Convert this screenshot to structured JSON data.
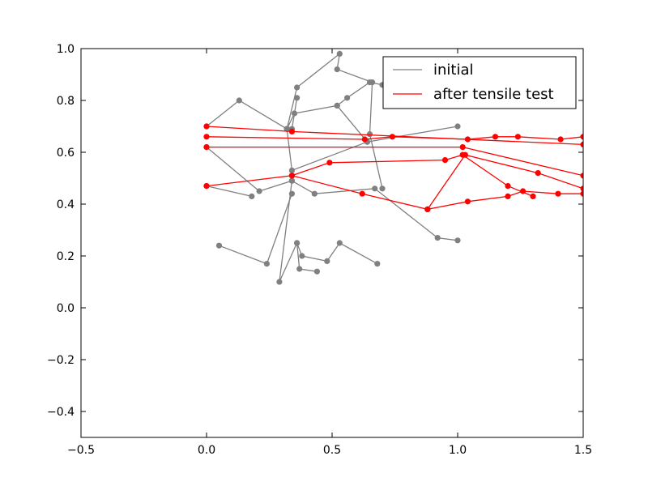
{
  "chart_data": {
    "type": "line",
    "xlim": [
      -0.5,
      1.5
    ],
    "ylim": [
      -0.5,
      1.0
    ],
    "xticks": [
      "−0.5",
      "0.0",
      "0.5",
      "1.0",
      "1.5"
    ],
    "xtick_values": [
      -0.5,
      0.0,
      0.5,
      1.0,
      1.5
    ],
    "yticks": [
      "−0.4",
      "−0.2",
      "0.0",
      "0.2",
      "0.4",
      "0.6",
      "0.8",
      "1.0"
    ],
    "ytick_values": [
      -0.4,
      -0.2,
      0.0,
      0.2,
      0.4,
      0.6,
      0.8,
      1.0
    ],
    "grid": false,
    "legend_position": "top-right",
    "series": [
      {
        "name": "initial",
        "color": "#808080",
        "segments": [
          [
            [
              0.0,
              0.7
            ],
            [
              0.13,
              0.8
            ],
            [
              0.32,
              0.69
            ],
            [
              0.34,
              0.53
            ],
            [
              0.64,
              0.64
            ],
            [
              1.0,
              0.7
            ]
          ],
          [
            [
              0.0,
              0.62
            ],
            [
              0.21,
              0.45
            ],
            [
              0.34,
              0.49
            ],
            [
              0.43,
              0.44
            ],
            [
              0.67,
              0.46
            ],
            [
              0.92,
              0.27
            ],
            [
              1.0,
              0.26
            ]
          ],
          [
            [
              0.05,
              0.24
            ],
            [
              0.24,
              0.17
            ],
            [
              0.34,
              0.44
            ]
          ],
          [
            [
              0.34,
              0.49
            ],
            [
              0.29,
              0.1
            ],
            [
              0.36,
              0.25
            ],
            [
              0.38,
              0.2
            ],
            [
              0.48,
              0.18
            ],
            [
              0.53,
              0.25
            ],
            [
              0.68,
              0.17
            ]
          ],
          [
            [
              0.36,
              0.25
            ],
            [
              0.37,
              0.15
            ],
            [
              0.44,
              0.14
            ]
          ],
          [
            [
              0.32,
              0.69
            ],
            [
              0.35,
              0.75
            ],
            [
              0.52,
              0.78
            ],
            [
              0.56,
              0.81
            ],
            [
              0.65,
              0.87
            ],
            [
              0.7,
              0.86
            ]
          ],
          [
            [
              0.32,
              0.69
            ],
            [
              0.36,
              0.85
            ],
            [
              0.53,
              0.98
            ],
            [
              0.52,
              0.92
            ],
            [
              0.66,
              0.87
            ],
            [
              0.65,
              0.67
            ],
            [
              0.7,
              0.46
            ]
          ],
          [
            [
              0.52,
              0.78
            ],
            [
              0.64,
              0.64
            ]
          ],
          [
            [
              0.18,
              0.43
            ],
            [
              0.0,
              0.47
            ]
          ],
          [
            [
              0.36,
              0.81
            ],
            [
              0.34,
              0.69
            ]
          ]
        ]
      },
      {
        "name": "after tensile test",
        "color": "#ff0000",
        "segments": [
          [
            [
              0.0,
              0.7
            ],
            [
              0.34,
              0.68
            ],
            [
              1.5,
              0.63
            ]
          ],
          [
            [
              0.0,
              0.66
            ],
            [
              0.63,
              0.65
            ],
            [
              0.74,
              0.66
            ],
            [
              1.04,
              0.65
            ],
            [
              1.15,
              0.66
            ],
            [
              1.24,
              0.66
            ],
            [
              1.41,
              0.65
            ],
            [
              1.5,
              0.66
            ]
          ],
          [
            [
              0.0,
              0.62
            ],
            [
              1.02,
              0.62
            ],
            [
              1.5,
              0.51
            ]
          ],
          [
            [
              0.0,
              0.47
            ],
            [
              0.34,
              0.51
            ],
            [
              0.49,
              0.56
            ],
            [
              0.95,
              0.57
            ],
            [
              1.02,
              0.59
            ],
            [
              1.2,
              0.47
            ],
            [
              1.3,
              0.43
            ]
          ],
          [
            [
              0.34,
              0.51
            ],
            [
              0.62,
              0.44
            ],
            [
              0.88,
              0.38
            ],
            [
              1.03,
              0.59
            ],
            [
              1.32,
              0.52
            ],
            [
              1.5,
              0.46
            ]
          ],
          [
            [
              0.88,
              0.38
            ],
            [
              1.04,
              0.41
            ],
            [
              1.2,
              0.43
            ],
            [
              1.26,
              0.45
            ],
            [
              1.4,
              0.44
            ],
            [
              1.5,
              0.44
            ]
          ]
        ]
      }
    ]
  }
}
